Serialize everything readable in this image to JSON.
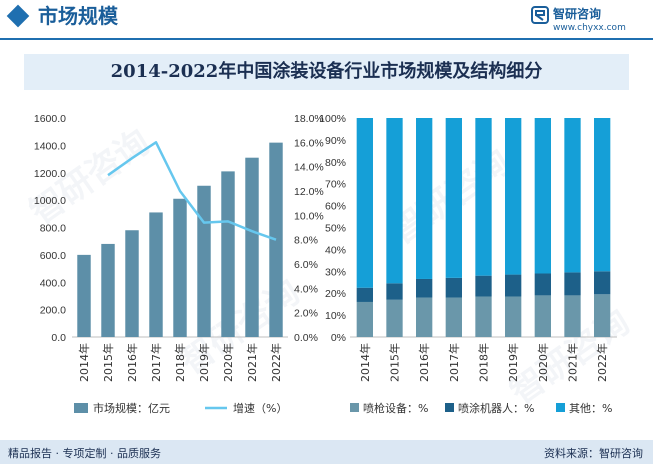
{
  "header": {
    "title": "市场规模",
    "logo_name": "智研咨询",
    "logo_url": "www.chyxx.com"
  },
  "watermark": "智研咨询",
  "colors": {
    "bar": "#5d8fa8",
    "line": "#66c7ee",
    "spray_gun": "#6a97aa",
    "spray_robot": "#1d6089",
    "other": "#159fd7",
    "brand": "#1a5e9a"
  },
  "chart_data": [
    {
      "type": "bar",
      "title": "2014-2022年中国涂装设备行业市场规模及结构细分",
      "categories": [
        "2014年",
        "2015年",
        "2016年",
        "2017年",
        "2018年",
        "2019年",
        "2020年",
        "2021年",
        "2022年"
      ],
      "series": [
        {
          "name": "市场规模：亿元",
          "kind": "bar",
          "axis": "left",
          "values": [
            600,
            680,
            780,
            910,
            1010,
            1105,
            1210,
            1310,
            1420
          ]
        },
        {
          "name": "增速（%）",
          "kind": "line",
          "axis": "right",
          "values": [
            null,
            13.3,
            14.7,
            16.0,
            12.0,
            9.4,
            9.5,
            8.7,
            8.0
          ]
        }
      ],
      "yleft": {
        "lim": [
          0,
          1600
        ],
        "ticks": [
          "0.0",
          "200.0",
          "400.0",
          "600.0",
          "800.0",
          "1000.0",
          "1200.0",
          "1400.0",
          "1600.0"
        ]
      },
      "yright": {
        "lim": [
          0,
          18
        ],
        "ticks": [
          "0.0%",
          "2.0%",
          "4.0%",
          "6.0%",
          "8.0%",
          "10.0%",
          "12.0%",
          "14.0%",
          "16.0%",
          "18.0%"
        ]
      },
      "legend_position": "bottom"
    },
    {
      "type": "bar",
      "stacked": true,
      "categories": [
        "2014年",
        "2015年",
        "2016年",
        "2017年",
        "2018年",
        "2019年",
        "2020年",
        "2021年",
        "2022年"
      ],
      "series": [
        {
          "name": "喷枪设备：%",
          "values": [
            16.0,
            17.0,
            18.0,
            18.0,
            18.5,
            18.5,
            19.0,
            19.0,
            19.5
          ]
        },
        {
          "name": "喷涂机器人：%",
          "values": [
            6.5,
            7.5,
            8.5,
            9.0,
            9.5,
            10.0,
            10.0,
            10.5,
            10.5
          ]
        },
        {
          "name": "其他：%",
          "values": [
            77.5,
            75.5,
            73.5,
            73.0,
            72.0,
            71.5,
            71.0,
            70.5,
            70.0
          ]
        }
      ],
      "y": {
        "lim": [
          0,
          100
        ],
        "ticks": [
          "0%",
          "10%",
          "20%",
          "30%",
          "40%",
          "50%",
          "60%",
          "70%",
          "80%",
          "90%",
          "100%"
        ]
      },
      "legend_position": "bottom"
    }
  ],
  "footer": {
    "left": "精品报告 · 专项定制 · 品质服务",
    "right": "资料来源：智研咨询"
  }
}
